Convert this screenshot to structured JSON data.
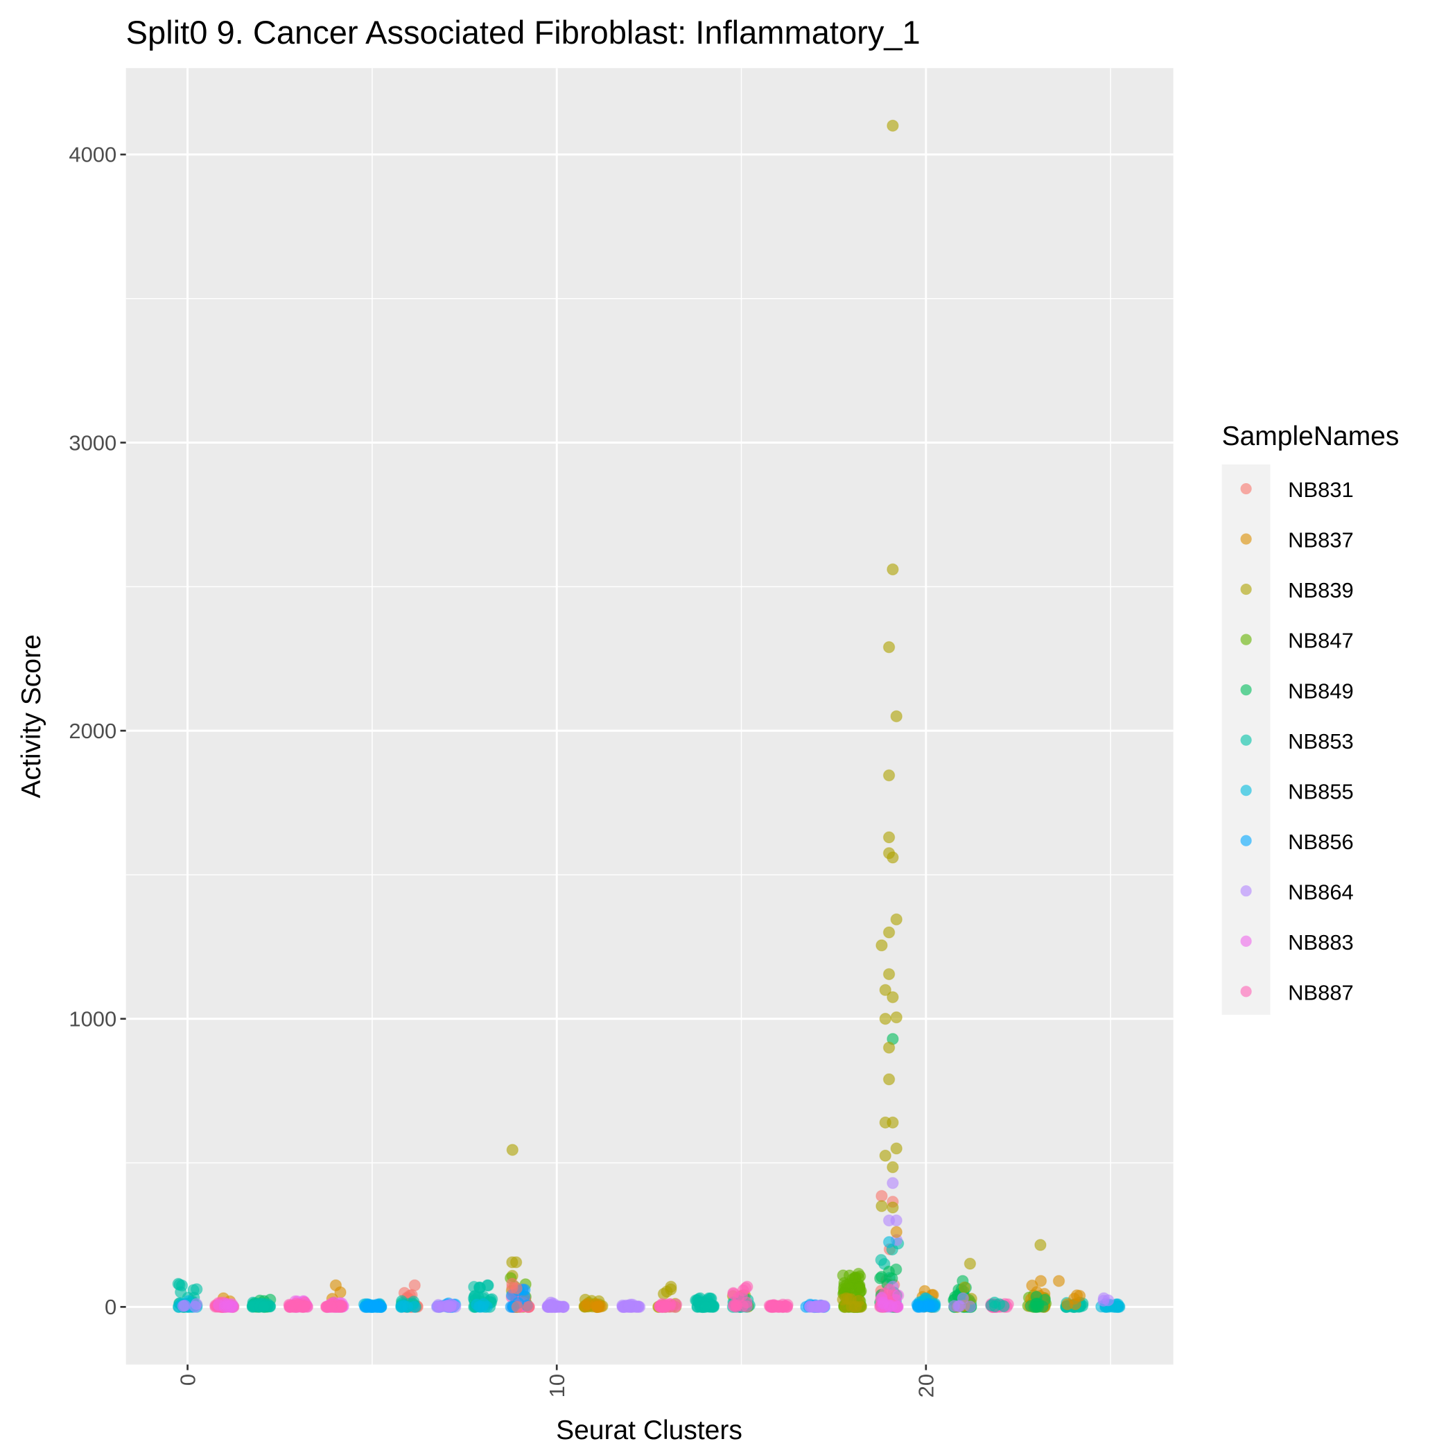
{
  "chart_data": {
    "type": "scatter",
    "title": "Split0 9. Cancer Associated Fibroblast: Inflammatory_1",
    "xlabel": "Seurat Clusters",
    "ylabel": "Activity Score",
    "xlim": [
      -1.67,
      26.7
    ],
    "ylim": [
      -200,
      4300
    ],
    "x_ticks": [
      0,
      10,
      20
    ],
    "x_tick_labels": [
      "0",
      "10",
      "20"
    ],
    "y_ticks": [
      0,
      1000,
      2000,
      3000,
      4000
    ],
    "y_tick_labels": [
      "0",
      "1000",
      "2000",
      "3000",
      "4000"
    ],
    "grid": true,
    "legend": {
      "title": "SampleNames",
      "placement": "right",
      "entries": [
        "NB831",
        "NB837",
        "NB839",
        "NB847",
        "NB849",
        "NB853",
        "NB855",
        "NB856",
        "NB864",
        "NB883",
        "NB887"
      ],
      "colors": [
        "#F8766D",
        "#DB8E00",
        "#AEA200",
        "#64B200",
        "#00BD5C",
        "#00C1A7",
        "#00BADE",
        "#00A6FF",
        "#B385FF",
        "#EF67EB",
        "#FF63B6"
      ]
    },
    "cluster_groups": [
      {
        "cluster": 0,
        "groups": [
          [
            "NB853",
            30,
            80
          ],
          [
            "NB855",
            10,
            20
          ],
          [
            "NB864",
            4,
            10
          ]
        ]
      },
      {
        "cluster": 1,
        "groups": [
          [
            "NB837",
            10,
            30
          ],
          [
            "NB887",
            30,
            15
          ],
          [
            "NB883",
            10,
            10
          ]
        ]
      },
      {
        "cluster": 2,
        "groups": [
          [
            "NB849",
            20,
            25
          ],
          [
            "NB853",
            20,
            15
          ]
        ]
      },
      {
        "cluster": 3,
        "groups": [
          [
            "NB883",
            10,
            20
          ],
          [
            "NB887",
            30,
            15
          ]
        ]
      },
      {
        "cluster": 4,
        "groups": [
          [
            "NB837",
            8,
            75
          ],
          [
            "NB883",
            20,
            15
          ],
          [
            "NB887",
            20,
            10
          ]
        ]
      },
      {
        "cluster": 5,
        "groups": [
          [
            "NB855",
            20,
            10
          ],
          [
            "NB856",
            20,
            8
          ]
        ]
      },
      {
        "cluster": 6,
        "groups": [
          [
            "NB831",
            15,
            75
          ],
          [
            "NB853",
            15,
            20
          ],
          [
            "NB855",
            6,
            5
          ]
        ]
      },
      {
        "cluster": 7,
        "groups": [
          [
            "NB856",
            20,
            12
          ],
          [
            "NB864",
            15,
            8
          ]
        ]
      },
      {
        "cluster": 8,
        "groups": [
          [
            "NB853",
            30,
            75
          ],
          [
            "NB855",
            6,
            10
          ]
        ]
      },
      {
        "cluster": 9,
        "groups": [
          [
            "NB839",
            20,
            155
          ],
          [
            "NB847",
            15,
            100
          ],
          [
            "NB887",
            25,
            60
          ],
          [
            "NB856",
            10,
            60
          ],
          [
            "NB831",
            5,
            80
          ]
        ]
      },
      {
        "cluster": 10,
        "groups": [
          [
            "NB864",
            30,
            15
          ]
        ]
      },
      {
        "cluster": 11,
        "groups": [
          [
            "NB839",
            25,
            25
          ],
          [
            "NB837",
            8,
            10
          ]
        ]
      },
      {
        "cluster": 12,
        "groups": [
          [
            "NB864",
            25,
            8
          ]
        ]
      },
      {
        "cluster": 13,
        "groups": [
          [
            "NB839",
            15,
            70
          ],
          [
            "NB887",
            20,
            10
          ]
        ]
      },
      {
        "cluster": 14,
        "groups": [
          [
            "NB853",
            40,
            30
          ]
        ]
      },
      {
        "cluster": 15,
        "groups": [
          [
            "NB839",
            10,
            40
          ],
          [
            "NB853",
            15,
            30
          ],
          [
            "NB887",
            15,
            70
          ]
        ]
      },
      {
        "cluster": 16,
        "groups": [
          [
            "NB887",
            30,
            8
          ]
        ]
      },
      {
        "cluster": 17,
        "groups": [
          [
            "NB856",
            20,
            8
          ],
          [
            "NB864",
            20,
            5
          ]
        ]
      },
      {
        "cluster": 18,
        "groups": [
          [
            "NB847",
            80,
            115
          ],
          [
            "NB839",
            10,
            30
          ]
        ]
      },
      {
        "cluster": 19,
        "groups": [
          [
            "NB831",
            10,
            200
          ],
          [
            "NB853",
            10,
            220
          ],
          [
            "NB849",
            15,
            130
          ],
          [
            "NB864",
            10,
            300
          ],
          [
            "NB887",
            20,
            60
          ],
          [
            "NB883",
            10,
            40
          ]
        ]
      },
      {
        "cluster": 20,
        "groups": [
          [
            "NB837",
            8,
            55
          ],
          [
            "NB855",
            20,
            30
          ],
          [
            "NB856",
            10,
            10
          ]
        ]
      },
      {
        "cluster": 21,
        "groups": [
          [
            "NB849",
            40,
            90
          ],
          [
            "NB839",
            6,
            150
          ],
          [
            "NB864",
            5,
            30
          ]
        ]
      },
      {
        "cluster": 22,
        "groups": [
          [
            "NB887",
            30,
            10
          ],
          [
            "NB853",
            5,
            15
          ]
        ]
      },
      {
        "cluster": 23,
        "groups": [
          [
            "NB847",
            25,
            40
          ],
          [
            "NB837",
            12,
            90
          ],
          [
            "NB849",
            10,
            35
          ]
        ]
      },
      {
        "cluster": 24,
        "groups": [
          [
            "NB853",
            25,
            15
          ],
          [
            "NB837",
            5,
            40
          ]
        ]
      },
      {
        "cluster": 25,
        "groups": [
          [
            "NB855",
            20,
            10
          ],
          [
            "NB864",
            3,
            30
          ]
        ]
      }
    ],
    "outliers": [
      [
        19.1,
        4100,
        "NB839"
      ],
      [
        19.1,
        2560,
        "NB839"
      ],
      [
        19.0,
        2290,
        "NB839"
      ],
      [
        19.2,
        2050,
        "NB839"
      ],
      [
        19.0,
        1845,
        "NB839"
      ],
      [
        19.0,
        1630,
        "NB839"
      ],
      [
        19.0,
        1575,
        "NB839"
      ],
      [
        19.1,
        1560,
        "NB839"
      ],
      [
        19.2,
        1345,
        "NB839"
      ],
      [
        19.0,
        1300,
        "NB839"
      ],
      [
        18.8,
        1255,
        "NB839"
      ],
      [
        19.0,
        1155,
        "NB839"
      ],
      [
        18.9,
        1100,
        "NB839"
      ],
      [
        19.1,
        1075,
        "NB839"
      ],
      [
        19.2,
        1005,
        "NB839"
      ],
      [
        18.9,
        1000,
        "NB839"
      ],
      [
        19.1,
        930,
        "NB849"
      ],
      [
        19.0,
        900,
        "NB839"
      ],
      [
        19.0,
        790,
        "NB839"
      ],
      [
        18.9,
        640,
        "NB839"
      ],
      [
        19.1,
        640,
        "NB839"
      ],
      [
        19.2,
        550,
        "NB839"
      ],
      [
        18.9,
        525,
        "NB839"
      ],
      [
        19.1,
        485,
        "NB839"
      ],
      [
        19.1,
        430,
        "NB864"
      ],
      [
        18.8,
        385,
        "NB831"
      ],
      [
        19.1,
        365,
        "NB831"
      ],
      [
        19.1,
        345,
        "NB839"
      ],
      [
        18.8,
        350,
        "NB839"
      ],
      [
        19.0,
        300,
        "NB864"
      ],
      [
        19.2,
        260,
        "NB837"
      ],
      [
        19.0,
        225,
        "NB855"
      ],
      [
        8.8,
        545,
        "NB839"
      ],
      [
        8.9,
        155,
        "NB839"
      ],
      [
        23.1,
        215,
        "NB839"
      ],
      [
        23.6,
        90,
        "NB837"
      ]
    ]
  }
}
